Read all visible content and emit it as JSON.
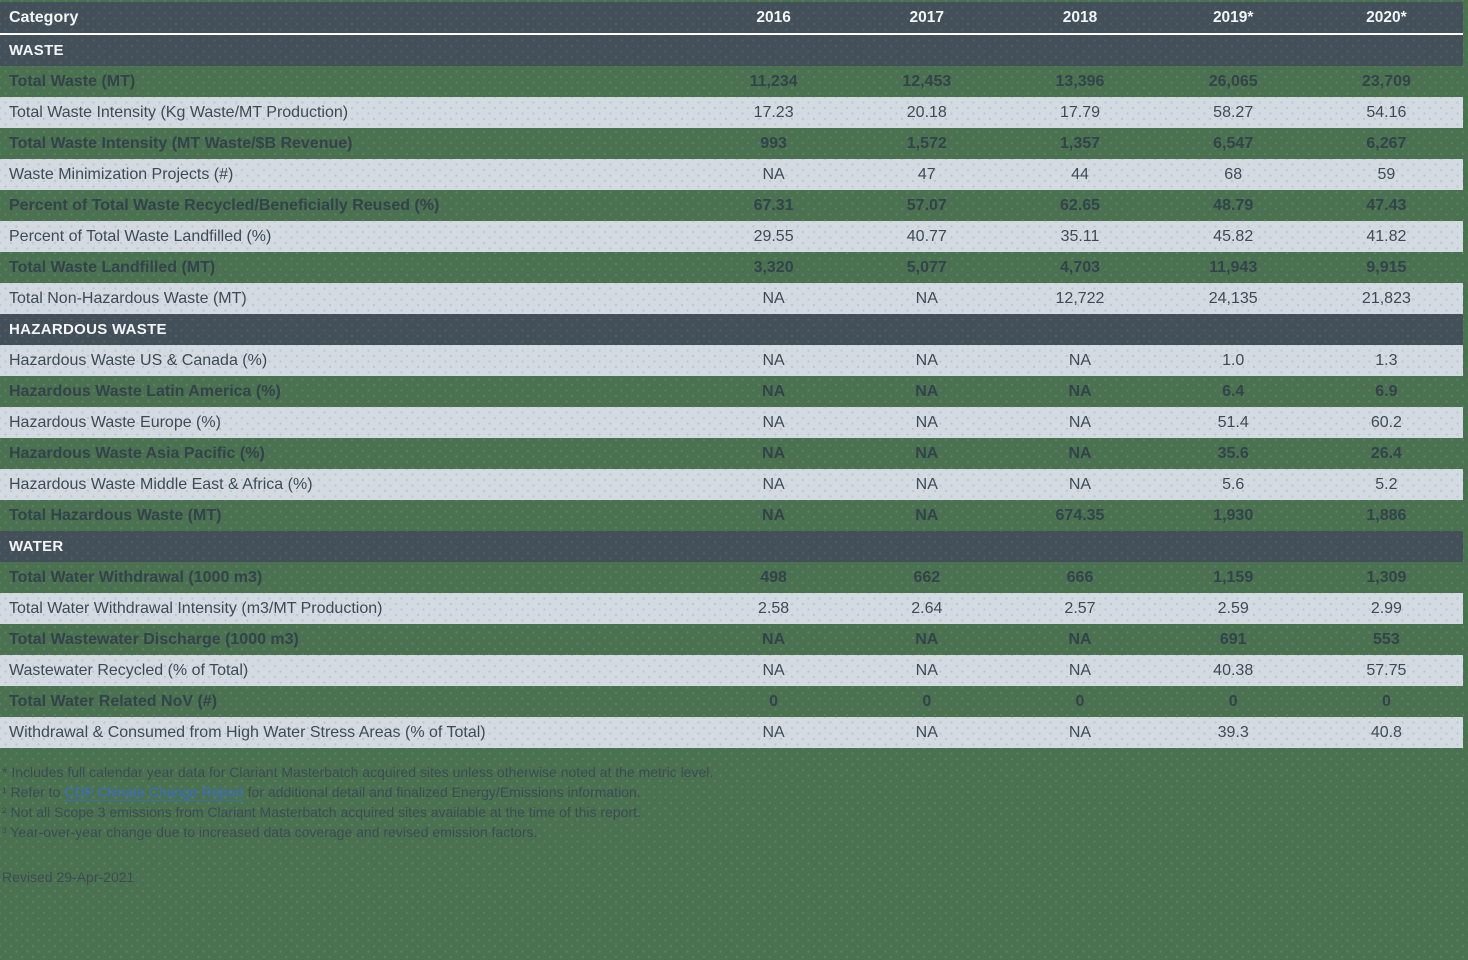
{
  "table": {
    "columns": [
      "Category",
      "2016",
      "2017",
      "2018",
      "2019*",
      "2020*"
    ],
    "sections": [
      {
        "title": "WASTE",
        "rows": [
          {
            "label": "Total Waste (MT)",
            "values": [
              "11,234",
              "12,453",
              "13,396",
              "26,065",
              "23,709"
            ]
          },
          {
            "label": "Total Waste Intensity (Kg Waste/MT Production)",
            "values": [
              "17.23",
              "20.18",
              "17.79",
              "58.27",
              "54.16"
            ]
          },
          {
            "label": "Total Waste Intensity (MT Waste/$B Revenue)",
            "values": [
              "993",
              "1,572",
              "1,357",
              "6,547",
              "6,267"
            ]
          },
          {
            "label": "Waste Minimization Projects (#)",
            "values": [
              "NA",
              "47",
              "44",
              "68",
              "59"
            ]
          },
          {
            "label": "Percent of Total Waste Recycled/Beneficially Reused (%)",
            "values": [
              "67.31",
              "57.07",
              "62.65",
              "48.79",
              "47.43"
            ]
          },
          {
            "label": "Percent of Total Waste Landfilled (%)",
            "values": [
              "29.55",
              "40.77",
              "35.11",
              "45.82",
              "41.82"
            ]
          },
          {
            "label": "Total Waste Landfilled (MT)",
            "values": [
              "3,320",
              "5,077",
              "4,703",
              "11,943",
              "9,915"
            ]
          },
          {
            "label": "Total Non-Hazardous Waste (MT)",
            "values": [
              "NA",
              "NA",
              "12,722",
              "24,135",
              "21,823"
            ]
          }
        ]
      },
      {
        "title": "HAZARDOUS WASTE",
        "rows": [
          {
            "label": "Hazardous Waste US & Canada (%)",
            "values": [
              "NA",
              "NA",
              "NA",
              "1.0",
              "1.3"
            ]
          },
          {
            "label": "Hazardous Waste Latin America (%)",
            "values": [
              "NA",
              "NA",
              "NA",
              "6.4",
              "6.9"
            ]
          },
          {
            "label": "Hazardous Waste Europe (%)",
            "values": [
              "NA",
              "NA",
              "NA",
              "51.4",
              "60.2"
            ]
          },
          {
            "label": "Hazardous Waste Asia Pacific (%)",
            "values": [
              "NA",
              "NA",
              "NA",
              "35.6",
              "26.4"
            ]
          },
          {
            "label": "Hazardous Waste Middle East & Africa (%)",
            "values": [
              "NA",
              "NA",
              "NA",
              "5.6",
              "5.2"
            ]
          },
          {
            "label": "Total Hazardous Waste (MT)",
            "values": [
              "NA",
              "NA",
              "674.35",
              "1,930",
              "1,886"
            ]
          }
        ]
      },
      {
        "title": "WATER",
        "rows": [
          {
            "label": "Total Water Withdrawal (1000 m3)",
            "values": [
              "498",
              "662",
              "666",
              "1,159",
              "1,309"
            ]
          },
          {
            "label": "Total Water Withdrawal Intensity (m3/MT Production)",
            "values": [
              "2.58",
              "2.64",
              "2.57",
              "2.59",
              "2.99"
            ]
          },
          {
            "label": "Total Wastewater Discharge (1000 m3)",
            "values": [
              "NA",
              "NA",
              "NA",
              "691",
              "553"
            ]
          },
          {
            "label": "Wastewater Recycled (% of Total)",
            "values": [
              "NA",
              "NA",
              "NA",
              "40.38",
              "57.75"
            ]
          },
          {
            "label": "Total Water Related NoV (#)",
            "values": [
              "0",
              "0",
              "0",
              "0",
              "0"
            ]
          },
          {
            "label": "Withdrawal & Consumed from High Water Stress Areas (% of Total)",
            "values": [
              "NA",
              "NA",
              "NA",
              "39.3",
              "40.8"
            ]
          }
        ]
      }
    ]
  },
  "footnotes": [
    {
      "marker": "*",
      "text": " Includes full calendar year data for Clariant Masterbatch acquired sites unless otherwise noted at the metric level."
    },
    {
      "marker": "¹",
      "pre": " Refer to ",
      "link": "CDP Climate Change Report",
      "post": " for additional detail and finalized Energy/Emissions information."
    },
    {
      "marker": "²",
      "text": " Not all Scope 3 emissions from Clariant Masterbatch acquired sites available at the time of this report."
    },
    {
      "marker": "³",
      "text": " Year-over-year change due to increased data coverage and revised emission factors."
    }
  ],
  "revised": "Revised 29-Apr-2021",
  "colors": {
    "background_green": "#4a7250",
    "row_light": "#d4dae2",
    "header_dark": "#43505a",
    "text_dark": "#3d4a54",
    "text_bold": "#33424b",
    "separator_white": "#ffffff",
    "link_blue": "#3b6cc5"
  }
}
